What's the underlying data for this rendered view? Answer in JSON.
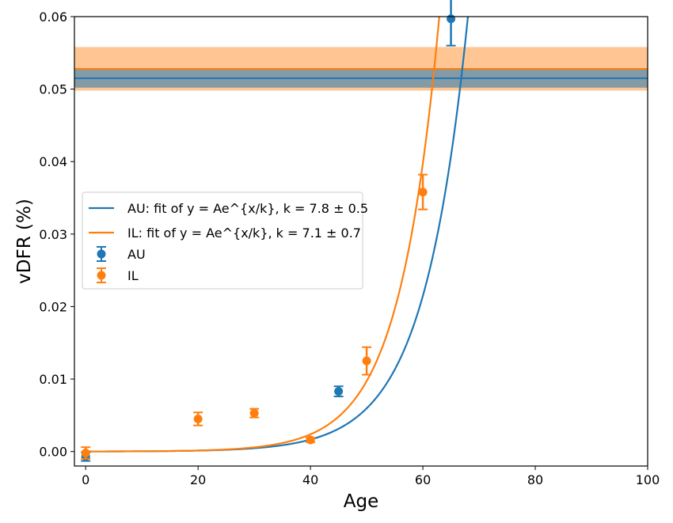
{
  "chart_data": {
    "type": "scatter",
    "xlabel": "Age",
    "ylabel": "vDFR (%)",
    "xlim": [
      -2,
      100
    ],
    "ylim": [
      -0.002,
      0.06
    ],
    "xticks": [
      "0",
      "20",
      "40",
      "60",
      "80",
      "100"
    ],
    "yticks": [
      "0.00",
      "0.01",
      "0.02",
      "0.03",
      "0.04",
      "0.05",
      "0.06"
    ],
    "grid": false,
    "legend_position": "center-left",
    "series": [
      {
        "name": "AU",
        "color": "#1f77b4",
        "points": [
          {
            "x": 0,
            "y": -0.0007,
            "err": 0.0006
          },
          {
            "x": 45,
            "y": 0.0083,
            "err": 0.0007
          },
          {
            "x": 65,
            "y": 0.0597,
            "err": 0.0037
          }
        ],
        "fit": {
          "label": "AU: fit of y = Ae^{x/k}, k = 7.8 ± 0.5",
          "k": 7.8,
          "A": 9.8e-06
        },
        "band": {
          "center": 0.0515,
          "low": 0.0502,
          "high": 0.0528
        }
      },
      {
        "name": "IL",
        "color": "#ff7f0e",
        "points": [
          {
            "x": 0,
            "y": -0.0002,
            "err": 0.0008
          },
          {
            "x": 20,
            "y": 0.0045,
            "err": 0.0009
          },
          {
            "x": 30,
            "y": 0.0053,
            "err": 0.0006
          },
          {
            "x": 40,
            "y": 0.0016,
            "err": 0.0003
          },
          {
            "x": 50,
            "y": 0.0125,
            "err": 0.0019
          },
          {
            "x": 60,
            "y": 0.0358,
            "err": 0.0024
          }
        ],
        "fit": {
          "label": "IL: fit of y = Ae^{x/k}, k = 7.1 ± 0.7",
          "k": 7.1,
          "A": 8.5e-06
        },
        "band": {
          "center": 0.0528,
          "low": 0.0498,
          "high": 0.0558
        }
      }
    ]
  }
}
